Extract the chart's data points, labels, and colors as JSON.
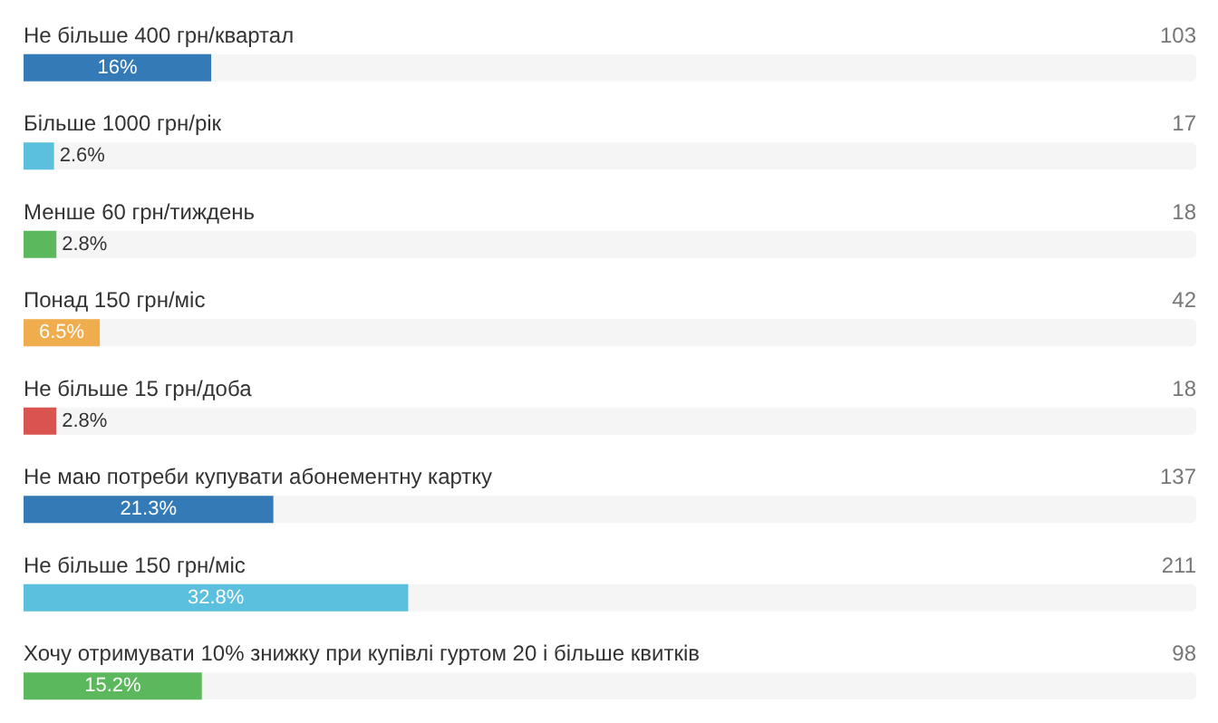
{
  "chart_data": {
    "type": "bar",
    "orientation": "horizontal",
    "categories": [
      "Не більше 400 грн/квартал",
      "Більше 1000 грн/рік",
      "Менше 60 грн/тиждень",
      "Понад 150 грн/міс",
      "Не більше 15 грн/доба",
      "Не маю потреби купувати абонементну картку",
      "Не більше 150 грн/міс",
      "Хочу отримувати 10% знижку при купівлі гуртом 20 і більше квитків"
    ],
    "values": [
      16,
      2.6,
      2.8,
      6.5,
      2.8,
      21.3,
      32.8,
      15.2
    ],
    "colors": [
      "#337ab7",
      "#5bc0de",
      "#5cb85c",
      "#f0ad4e",
      "#d9534f",
      "#337ab7",
      "#5bc0de",
      "#5cb85c"
    ],
    "value_labels": [
      "16%",
      "2.6%",
      "2.8%",
      "6.5%",
      "2.8%",
      "21.3%",
      "32.8%",
      "15.2%"
    ],
    "xlim": [
      0,
      100
    ],
    "annotations": [
      "103",
      "17",
      "18",
      "42",
      "18",
      "137",
      "211",
      "98"
    ]
  }
}
